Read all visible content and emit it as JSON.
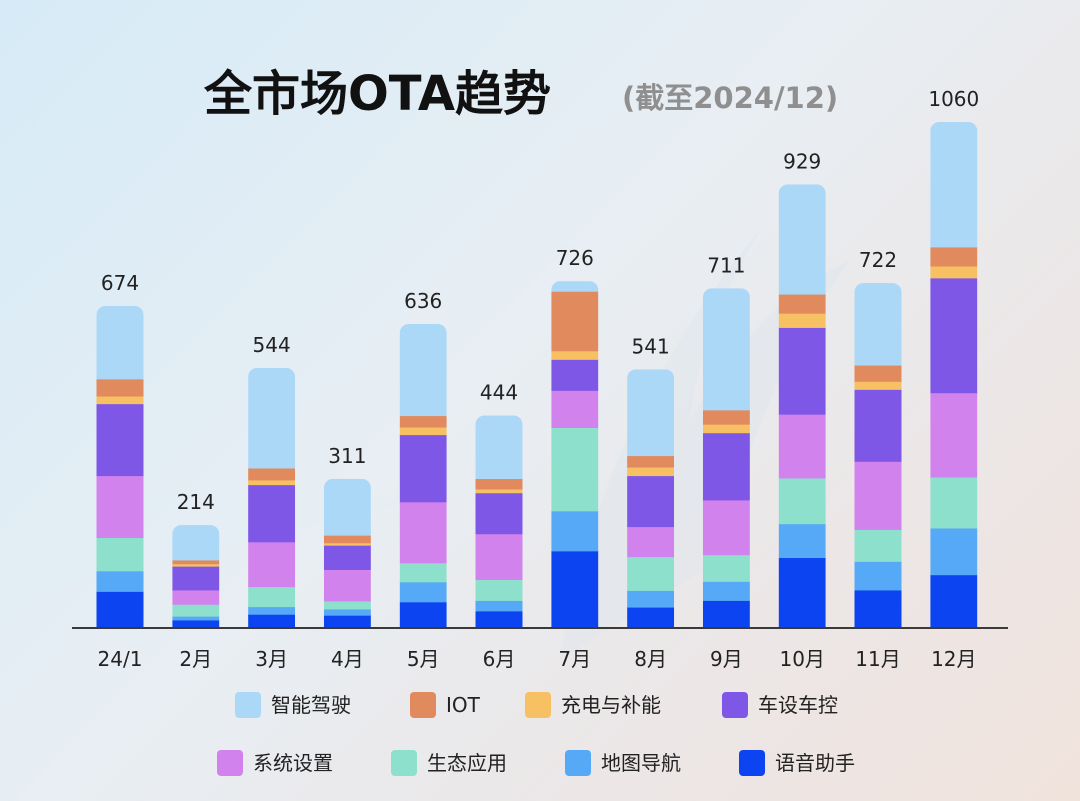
{
  "chart_data": {
    "type": "bar",
    "stacked": true,
    "title": "全市场OTA趋势",
    "subtitle": "(截至2024/12)",
    "xlabel": "",
    "ylabel": "",
    "ylim": [
      0,
      1060
    ],
    "grid": false,
    "legend_position": "bottom",
    "categories": [
      "24/1",
      "2月",
      "3月",
      "4月",
      "5月",
      "6月",
      "7月",
      "8月",
      "9月",
      "10月",
      "11月",
      "12月"
    ],
    "totals": [
      674,
      214,
      544,
      311,
      636,
      444,
      726,
      541,
      711,
      929,
      722,
      1060
    ],
    "series": [
      {
        "name": "语音助手",
        "color": "#0b44f0",
        "values": [
          75,
          15,
          27,
          25,
          53,
          34,
          160,
          42,
          56,
          146,
          78,
          110
        ]
      },
      {
        "name": "地图导航",
        "color": "#56a9f7",
        "values": [
          43,
          8,
          16,
          13,
          42,
          22,
          84,
          35,
          40,
          71,
          60,
          98
        ]
      },
      {
        "name": "生态应用",
        "color": "#8ce0cc",
        "values": [
          70,
          25,
          42,
          17,
          40,
          44,
          175,
          71,
          56,
          96,
          67,
          107
        ]
      },
      {
        "name": "系统设置",
        "color": "#d282ec",
        "values": [
          130,
          30,
          94,
          66,
          128,
          96,
          78,
          63,
          115,
          134,
          143,
          177
        ]
      },
      {
        "name": "车设车控",
        "color": "#7e57e6",
        "values": [
          151,
          50,
          120,
          51,
          141,
          86,
          65,
          107,
          141,
          182,
          151,
          241
        ]
      },
      {
        "name": "充电与补能",
        "color": "#f6c063",
        "values": [
          16,
          5,
          10,
          5,
          16,
          8,
          18,
          18,
          18,
          30,
          17,
          25
        ]
      },
      {
        "name": "IOT",
        "color": "#e08a5e",
        "values": [
          36,
          8,
          25,
          16,
          24,
          22,
          125,
          24,
          30,
          40,
          34,
          40
        ]
      },
      {
        "name": "智能驾驶",
        "color": "#acd8f8",
        "values": [
          153,
          73,
          210,
          118,
          192,
          132,
          21,
          181,
          255,
          230,
          172,
          262
        ]
      }
    ]
  }
}
